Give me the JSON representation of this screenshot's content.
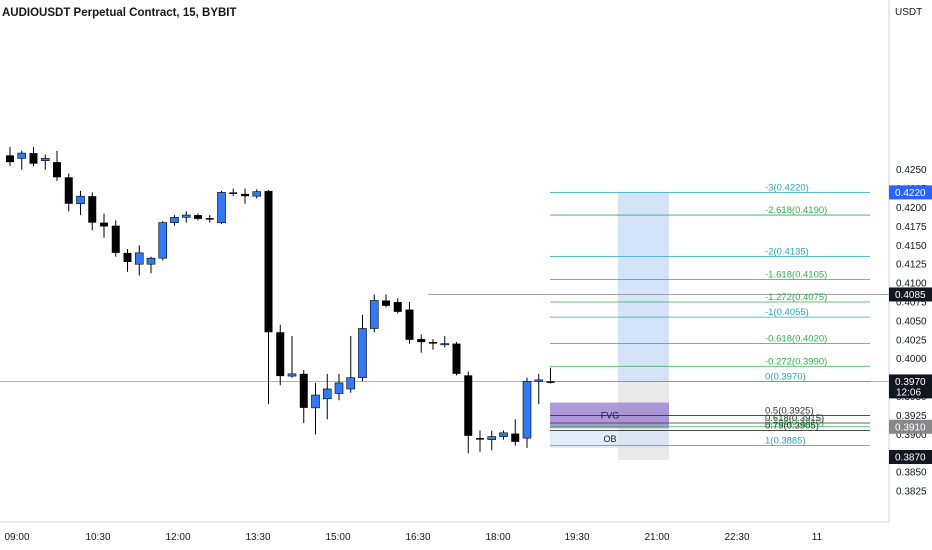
{
  "header": {
    "title": "AUDIOUSDT Perpetual Contract, 15, BYBIT"
  },
  "chart_data": {
    "type": "candlestick",
    "symbol": "AUDIOUSDT Perpetual Contract",
    "interval": "15",
    "exchange": "BYBIT",
    "price_unit": "USDT",
    "y_ticks": [
      "0.4250",
      "0.4225",
      "0.4200",
      "0.4175",
      "0.4150",
      "0.4125",
      "0.4100",
      "0.4075",
      "0.4050",
      "0.4025",
      "0.4000",
      "0.3950",
      "0.3925",
      "0.3900",
      "0.3850",
      "0.3825"
    ],
    "y_range": [
      0.381,
      0.428
    ],
    "x_ticks": [
      "09:00",
      "10:30",
      "12:00",
      "13:30",
      "15:00",
      "16:30",
      "18:00",
      "19:30",
      "21:00",
      "22:30",
      "11"
    ],
    "candles": [
      {
        "o": 0.4269,
        "h": 0.428,
        "l": 0.4255,
        "c": 0.426
      },
      {
        "o": 0.4265,
        "h": 0.4275,
        "l": 0.425,
        "c": 0.4272
      },
      {
        "o": 0.4272,
        "h": 0.428,
        "l": 0.4255,
        "c": 0.4258
      },
      {
        "o": 0.4262,
        "h": 0.427,
        "l": 0.425,
        "c": 0.4265
      },
      {
        "o": 0.426,
        "h": 0.4275,
        "l": 0.4235,
        "c": 0.424
      },
      {
        "o": 0.424,
        "h": 0.4245,
        "l": 0.4195,
        "c": 0.4205
      },
      {
        "o": 0.4205,
        "h": 0.4222,
        "l": 0.419,
        "c": 0.4215
      },
      {
        "o": 0.4215,
        "h": 0.422,
        "l": 0.417,
        "c": 0.418
      },
      {
        "o": 0.418,
        "h": 0.4192,
        "l": 0.416,
        "c": 0.4175
      },
      {
        "o": 0.4176,
        "h": 0.4183,
        "l": 0.4135,
        "c": 0.414
      },
      {
        "o": 0.414,
        "h": 0.4145,
        "l": 0.4115,
        "c": 0.4128
      },
      {
        "o": 0.4125,
        "h": 0.415,
        "l": 0.411,
        "c": 0.414
      },
      {
        "o": 0.4125,
        "h": 0.4135,
        "l": 0.4113,
        "c": 0.4133
      },
      {
        "o": 0.4133,
        "h": 0.4182,
        "l": 0.413,
        "c": 0.418
      },
      {
        "o": 0.418,
        "h": 0.419,
        "l": 0.4176,
        "c": 0.4187
      },
      {
        "o": 0.4187,
        "h": 0.4195,
        "l": 0.418,
        "c": 0.419
      },
      {
        "o": 0.419,
        "h": 0.4192,
        "l": 0.4183,
        "c": 0.4185
      },
      {
        "o": 0.4186,
        "h": 0.419,
        "l": 0.418,
        "c": 0.4184
      },
      {
        "o": 0.418,
        "h": 0.4222,
        "l": 0.4178,
        "c": 0.422
      },
      {
        "o": 0.422,
        "h": 0.4225,
        "l": 0.4215,
        "c": 0.4218
      },
      {
        "o": 0.4218,
        "h": 0.4225,
        "l": 0.4205,
        "c": 0.4215
      },
      {
        "o": 0.4215,
        "h": 0.4224,
        "l": 0.4212,
        "c": 0.4221
      },
      {
        "o": 0.4222,
        "h": 0.4223,
        "l": 0.394,
        "c": 0.4035
      },
      {
        "o": 0.4035,
        "h": 0.4045,
        "l": 0.3965,
        "c": 0.3977
      },
      {
        "o": 0.3977,
        "h": 0.403,
        "l": 0.3975,
        "c": 0.398
      },
      {
        "o": 0.398,
        "h": 0.3985,
        "l": 0.3915,
        "c": 0.3935
      },
      {
        "o": 0.3935,
        "h": 0.3968,
        "l": 0.39,
        "c": 0.3952
      },
      {
        "o": 0.3947,
        "h": 0.398,
        "l": 0.392,
        "c": 0.396
      },
      {
        "o": 0.3954,
        "h": 0.398,
        "l": 0.3945,
        "c": 0.3968
      },
      {
        "o": 0.396,
        "h": 0.403,
        "l": 0.3955,
        "c": 0.3975
      },
      {
        "o": 0.3975,
        "h": 0.4058,
        "l": 0.397,
        "c": 0.404
      },
      {
        "o": 0.404,
        "h": 0.4085,
        "l": 0.4035,
        "c": 0.4077
      },
      {
        "o": 0.4077,
        "h": 0.4085,
        "l": 0.4068,
        "c": 0.407
      },
      {
        "o": 0.4075,
        "h": 0.408,
        "l": 0.406,
        "c": 0.4062
      },
      {
        "o": 0.4065,
        "h": 0.4075,
        "l": 0.402,
        "c": 0.4025
      },
      {
        "o": 0.4026,
        "h": 0.4032,
        "l": 0.4008,
        "c": 0.4022
      },
      {
        "o": 0.4022,
        "h": 0.4026,
        "l": 0.4012,
        "c": 0.402
      },
      {
        "o": 0.402,
        "h": 0.403,
        "l": 0.4015,
        "c": 0.402
      },
      {
        "o": 0.402,
        "h": 0.4022,
        "l": 0.3978,
        "c": 0.398
      },
      {
        "o": 0.3978,
        "h": 0.3983,
        "l": 0.3875,
        "c": 0.3898
      },
      {
        "o": 0.3895,
        "h": 0.3905,
        "l": 0.3877,
        "c": 0.3893
      },
      {
        "o": 0.3893,
        "h": 0.3905,
        "l": 0.3879,
        "c": 0.3897
      },
      {
        "o": 0.3897,
        "h": 0.3905,
        "l": 0.3893,
        "c": 0.3902
      },
      {
        "o": 0.3901,
        "h": 0.392,
        "l": 0.3885,
        "c": 0.389
      },
      {
        "o": 0.3895,
        "h": 0.3975,
        "l": 0.3882,
        "c": 0.397
      },
      {
        "o": 0.397,
        "h": 0.398,
        "l": 0.394,
        "c": 0.3972
      },
      {
        "o": 0.397,
        "h": 0.3988,
        "l": 0.3967,
        "c": 0.3968
      }
    ],
    "fib_levels": [
      {
        "ratio": "-3",
        "price": 0.422,
        "label": "-3(0.4220)",
        "color": "#26a6c4"
      },
      {
        "ratio": "-2.618",
        "price": 0.419,
        "label": "-2.618(0.4190)",
        "color": "#2bb34a"
      },
      {
        "ratio": "-2",
        "price": 0.4135,
        "label": "-2(0.4135)",
        "color": "#26a6c4"
      },
      {
        "ratio": "-1.618",
        "price": 0.4105,
        "label": "-1.618(0.4105)",
        "color": "#2bb34a"
      },
      {
        "ratio": "-1.272",
        "price": 0.4075,
        "label": "-1.272(0.4075)",
        "color": "#2bb34a"
      },
      {
        "ratio": "-1",
        "price": 0.4055,
        "label": "-1(0.4055)",
        "color": "#26a6c4"
      },
      {
        "ratio": "-0.618",
        "price": 0.402,
        "label": "-0.618(0.4020)",
        "color": "#2bb34a"
      },
      {
        "ratio": "-0.272",
        "price": 0.399,
        "label": "-0.272(0.3990)",
        "color": "#2bb34a"
      },
      {
        "ratio": "0",
        "price": 0.397,
        "label": "0(0.3970)",
        "color": "#26a6c4"
      },
      {
        "ratio": "0.5",
        "price": 0.3925,
        "label": "0.5(0.3925)",
        "color": "#333333"
      },
      {
        "ratio": "0.618",
        "price": 0.3915,
        "label": "0.618(0.3915)",
        "color": "#333333"
      },
      {
        "ratio": "0.705",
        "price": 0.391,
        "label": "0.705(0.3910)",
        "color": "#2bb34a"
      },
      {
        "ratio": "0.79",
        "price": 0.3905,
        "label": "0.79(0.3905)",
        "color": "#333333"
      },
      {
        "ratio": "1",
        "price": 0.3885,
        "label": "1(0.3885)",
        "color": "#26a6c4"
      }
    ],
    "zones": [
      {
        "label": "FVG",
        "top": 0.3942,
        "bottom": 0.3908,
        "color": "#9a7fd1"
      },
      {
        "label": "OB",
        "top": 0.3905,
        "bottom": 0.3882,
        "color": "#d6e4f7"
      }
    ],
    "long_position": {
      "target": 0.422,
      "entry": 0.397,
      "stop": 0.387
    },
    "price_labels": [
      {
        "text": "0.4220",
        "price": 0.422,
        "bg": "#2962ff",
        "fg": "#ffffff"
      },
      {
        "text": "0.4085",
        "price": 0.4085,
        "bg": "#131722",
        "fg": "#ffffff"
      },
      {
        "text": "0.3970",
        "price": 0.397,
        "bg": "#131722",
        "fg": "#ffffff",
        "sub": "12:06"
      },
      {
        "text": "0.3910",
        "price": 0.391,
        "bg": "#888888",
        "fg": "#ffffff"
      },
      {
        "text": "0.3870",
        "price": 0.387,
        "bg": "#131722",
        "fg": "#ffffff"
      }
    ],
    "horizontal_lines": [
      0.4085,
      0.397
    ],
    "colors": {
      "up": "#3179f5",
      "down": "#000000",
      "grid": "#f0f3fa",
      "text": "#131722"
    }
  }
}
